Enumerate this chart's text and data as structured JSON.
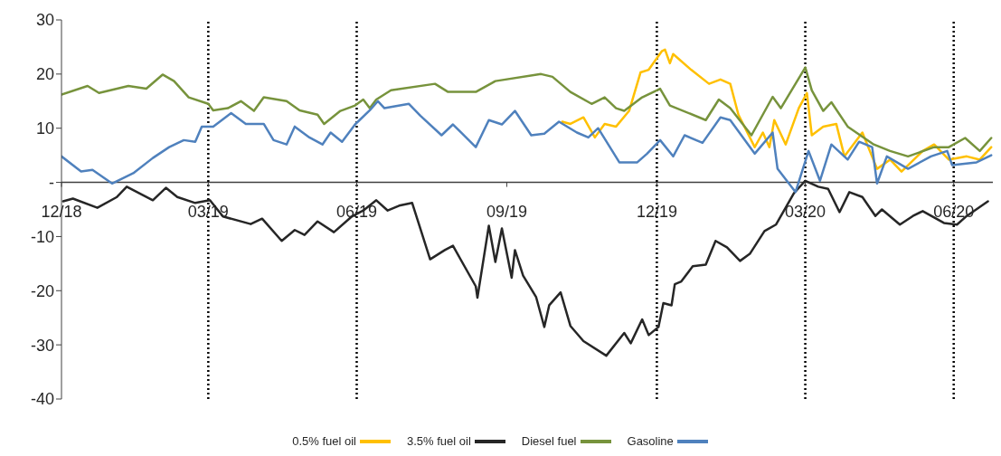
{
  "chart_data": {
    "type": "line",
    "xlim": [
      "2018-12-31",
      "2020-07-24"
    ],
    "xticks": [
      {
        "value": "2018-12-31",
        "label": "12/18"
      },
      {
        "value": "2019-03-31",
        "label": "03/19"
      },
      {
        "value": "2019-06-30",
        "label": "06/19"
      },
      {
        "value": "2019-09-30",
        "label": "09/19"
      },
      {
        "value": "2019-12-31",
        "label": "12/19"
      },
      {
        "value": "2020-03-31",
        "label": "03/20"
      },
      {
        "value": "2020-06-30",
        "label": "06/20"
      }
    ],
    "ylim": [
      -40,
      30
    ],
    "yticks": [
      -40,
      -30,
      -20,
      -10,
      {
        "value": 0,
        "label": "-"
      },
      10,
      20,
      30
    ],
    "grid": false,
    "legend": "bottom",
    "line_style": "solid",
    "ref_lines": [
      {
        "axis": "x",
        "value": "2019-03-31",
        "color": "#000000",
        "line_style": "dotted"
      },
      {
        "axis": "x",
        "value": "2019-06-30",
        "color": "#000000",
        "line_style": "dotted"
      },
      {
        "axis": "x",
        "value": "2019-12-31",
        "color": "#000000",
        "line_style": "dotted"
      },
      {
        "axis": "x",
        "value": "2020-03-31",
        "color": "#000000",
        "line_style": "dotted"
      },
      {
        "axis": "x",
        "value": "2020-06-30",
        "color": "#000000",
        "line_style": "dotted"
      }
    ],
    "series": [
      {
        "name": "0.5% fuel oil",
        "color": "#ffc000",
        "x": [
          "2019-11-03",
          "2019-11-08",
          "2019-11-16",
          "2019-11-23",
          "2019-11-29",
          "2019-12-06",
          "2019-12-14",
          "2019-12-21",
          "2019-12-26",
          "2020-01-03",
          "2020-01-05",
          "2020-01-08",
          "2020-01-10",
          "2020-01-21",
          "2020-02-01",
          "2020-02-08",
          "2020-02-14",
          "2020-02-19",
          "2020-02-29",
          "2020-03-05",
          "2020-03-09",
          "2020-03-12",
          "2020-03-19",
          "2020-03-27",
          "2020-04-01",
          "2020-04-04",
          "2020-04-11",
          "2020-04-19",
          "2020-04-24",
          "2020-05-05",
          "2020-05-14",
          "2020-05-22",
          "2020-05-29",
          "2020-06-11",
          "2020-06-18",
          "2020-06-27",
          "2020-07-08",
          "2020-07-16",
          "2020-07-23"
        ],
        "values": [
          11.2,
          10.8,
          12,
          8.3,
          10.8,
          10.3,
          13.2,
          20.3,
          20.8,
          24.2,
          24.5,
          22,
          23.7,
          20.8,
          18.2,
          19,
          18.2,
          12.5,
          6.5,
          9.2,
          6.5,
          11.5,
          7,
          13.7,
          16.5,
          8.7,
          10.3,
          10.8,
          4.8,
          9.2,
          2.5,
          4.2,
          2,
          5.8,
          7,
          4.2,
          4.8,
          4.2,
          6.5
        ]
      },
      {
        "name": "3.5% fuel oil",
        "color": "#262626",
        "x": [
          "2019-01-01",
          "2019-01-07",
          "2019-01-22",
          "2019-02-03",
          "2019-02-09",
          "2019-02-25",
          "2019-03-05",
          "2019-03-12",
          "2019-03-23",
          "2019-04-01",
          "2019-04-09",
          "2019-04-26",
          "2019-05-03",
          "2019-05-15",
          "2019-05-23",
          "2019-05-29",
          "2019-06-06",
          "2019-06-16",
          "2019-06-27",
          "2019-07-04",
          "2019-07-12",
          "2019-07-19",
          "2019-07-26",
          "2019-08-03",
          "2019-08-14",
          "2019-08-23",
          "2019-08-28",
          "2019-09-11",
          "2019-09-12",
          "2019-09-19",
          "2019-09-23",
          "2019-09-27",
          "2019-10-03",
          "2019-10-05",
          "2019-10-10",
          "2019-10-18",
          "2019-10-23",
          "2019-10-26",
          "2019-11-02",
          "2019-11-08",
          "2019-11-16",
          "2019-11-30",
          "2019-12-11",
          "2019-12-15",
          "2019-12-22",
          "2019-12-26",
          "2020-01-01",
          "2020-01-04",
          "2020-01-09",
          "2020-01-11",
          "2020-01-15",
          "2020-01-22",
          "2020-01-30",
          "2020-02-05",
          "2020-02-12",
          "2020-02-20",
          "2020-02-26",
          "2020-03-06",
          "2020-03-13",
          "2020-03-24",
          "2020-03-31",
          "2020-04-08",
          "2020-04-14",
          "2020-04-21",
          "2020-04-27",
          "2020-05-05",
          "2020-05-13",
          "2020-05-17",
          "2020-05-28",
          "2020-06-05",
          "2020-06-11",
          "2020-06-24",
          "2020-07-02",
          "2020-07-08",
          "2020-07-21"
        ],
        "values": [
          -3.5,
          -3,
          -4.7,
          -2.7,
          -0.8,
          -3.3,
          -1,
          -2.7,
          -3.8,
          -3.3,
          -6.3,
          -7.7,
          -6.7,
          -10.8,
          -8.8,
          -9.7,
          -7.2,
          -9.2,
          -6.3,
          -5.2,
          -3.3,
          -5.2,
          -4.3,
          -3.8,
          -14.2,
          -12.5,
          -11.7,
          -19.2,
          -21.3,
          -8,
          -14.7,
          -8.5,
          -17.6,
          -12.5,
          -17.2,
          -21.2,
          -26.7,
          -22.7,
          -20.3,
          -26.5,
          -29.3,
          -32,
          -27.8,
          -29.7,
          -25.3,
          -28.2,
          -26.7,
          -22.3,
          -22.7,
          -18.8,
          -18.3,
          -15.5,
          -15.2,
          -10.8,
          -12,
          -14.5,
          -13.2,
          -9,
          -7.8,
          -2,
          0.3,
          -0.8,
          -1.2,
          -5.5,
          -1.8,
          -2.7,
          -6.2,
          -5,
          -7.8,
          -6.2,
          -5.3,
          -7.5,
          -7.8,
          -6.2,
          -3.5
        ]
      },
      {
        "name": "Diesel fuel",
        "color": "#77933c",
        "x": [
          "2018-12-31",
          "2019-01-16",
          "2019-01-23",
          "2019-02-10",
          "2019-02-21",
          "2019-03-03",
          "2019-03-10",
          "2019-03-19",
          "2019-03-31",
          "2019-04-03",
          "2019-04-12",
          "2019-04-20",
          "2019-04-28",
          "2019-05-04",
          "2019-05-18",
          "2019-05-26",
          "2019-06-06",
          "2019-06-10",
          "2019-06-20",
          "2019-06-29",
          "2019-07-04",
          "2019-07-08",
          "2019-07-12",
          "2019-07-21",
          "2019-08-17",
          "2019-08-25",
          "2019-09-11",
          "2019-09-23",
          "2019-10-21",
          "2019-10-28",
          "2019-11-08",
          "2019-11-21",
          "2019-11-29",
          "2019-12-06",
          "2019-12-11",
          "2019-12-22",
          "2020-01-02",
          "2020-01-08",
          "2020-01-30",
          "2020-02-07",
          "2020-02-14",
          "2020-02-27",
          "2020-03-11",
          "2020-03-16",
          "2020-03-31",
          "2020-04-04",
          "2020-04-11",
          "2020-04-16",
          "2020-04-26",
          "2020-05-12",
          "2020-05-22",
          "2020-06-02",
          "2020-06-18",
          "2020-06-27",
          "2020-07-07",
          "2020-07-16",
          "2020-07-23"
        ],
        "values": [
          16.2,
          17.8,
          16.5,
          17.8,
          17.3,
          19.9,
          18.7,
          15.7,
          14.5,
          13.3,
          13.7,
          15,
          13.2,
          15.7,
          15,
          13.3,
          12.5,
          10.8,
          13.2,
          14.2,
          15.3,
          13.7,
          15.3,
          17,
          18.2,
          16.7,
          16.7,
          18.7,
          20,
          19.5,
          16.7,
          14.5,
          15.7,
          13.7,
          13.2,
          15.7,
          17.3,
          14.2,
          11.5,
          15.3,
          13.7,
          8.7,
          15.8,
          13.7,
          21.2,
          17,
          13.2,
          14.8,
          10.3,
          7,
          5.8,
          4.8,
          6.5,
          6.5,
          8.2,
          5.8,
          8.2
        ]
      },
      {
        "name": "Gasoline",
        "color": "#4f81bd",
        "x": [
          "2018-12-31",
          "2019-01-12",
          "2019-01-19",
          "2019-01-31",
          "2019-02-13",
          "2019-02-25",
          "2019-03-07",
          "2019-03-16",
          "2019-03-23",
          "2019-03-27",
          "2019-04-03",
          "2019-04-14",
          "2019-04-23",
          "2019-05-04",
          "2019-05-10",
          "2019-05-18",
          "2019-05-23",
          "2019-06-01",
          "2019-06-09",
          "2019-06-14",
          "2019-06-21",
          "2019-06-29",
          "2019-07-08",
          "2019-07-13",
          "2019-07-17",
          "2019-08-01",
          "2019-08-08",
          "2019-08-21",
          "2019-08-28",
          "2019-09-11",
          "2019-09-19",
          "2019-09-27",
          "2019-10-05",
          "2019-10-15",
          "2019-10-23",
          "2019-11-01",
          "2019-11-12",
          "2019-11-19",
          "2019-11-25",
          "2019-12-08",
          "2019-12-19",
          "2019-12-25",
          "2020-01-02",
          "2020-01-10",
          "2020-01-17",
          "2020-01-28",
          "2020-02-08",
          "2020-02-14",
          "2020-02-29",
          "2020-03-11",
          "2020-03-14",
          "2020-03-25",
          "2020-04-02",
          "2020-04-09",
          "2020-04-16",
          "2020-04-26",
          "2020-05-03",
          "2020-05-11",
          "2020-05-14",
          "2020-05-20",
          "2020-06-02",
          "2020-06-16",
          "2020-06-26",
          "2020-06-29",
          "2020-07-14",
          "2020-07-23"
        ],
        "values": [
          4.8,
          2,
          2.3,
          -0.2,
          1.7,
          4.5,
          6.5,
          7.8,
          7.5,
          10.3,
          10.3,
          12.8,
          10.8,
          10.8,
          7.8,
          7,
          10.3,
          8.3,
          7,
          9.2,
          7.5,
          10.7,
          13.3,
          15,
          13.7,
          14.5,
          12.3,
          8.7,
          10.7,
          6.5,
          11.5,
          10.7,
          13.2,
          8.7,
          9,
          11.2,
          9.2,
          8.3,
          10,
          3.7,
          3.7,
          5.3,
          7.8,
          4.8,
          8.7,
          7.3,
          12,
          11.5,
          5.3,
          9.2,
          2.5,
          -1.8,
          5.8,
          0.3,
          7,
          4.2,
          7.5,
          6.5,
          -0.2,
          4.8,
          2.5,
          4.8,
          5.8,
          3.2,
          3.7,
          5
        ]
      }
    ]
  }
}
